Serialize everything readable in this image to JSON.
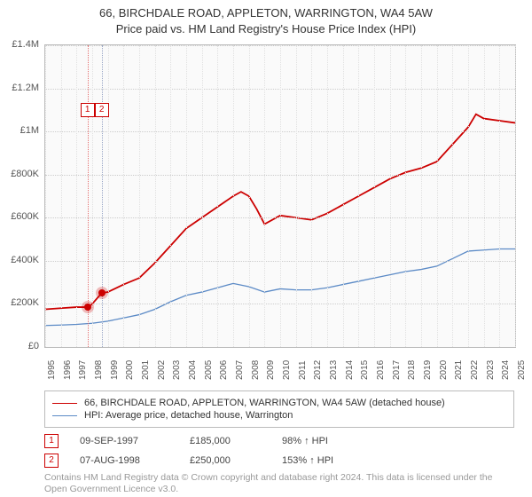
{
  "title": {
    "line1": "66, BIRCHDALE ROAD, APPLETON, WARRINGTON, WA4 5AW",
    "line2": "Price paid vs. HM Land Registry's House Price Index (HPI)"
  },
  "chart": {
    "type": "line",
    "background_color": "#fafafa",
    "border_color": "#bbbbbb",
    "grid_color": "#cccccc",
    "x_years": [
      1995,
      1996,
      1997,
      1998,
      1999,
      2000,
      2001,
      2002,
      2003,
      2004,
      2005,
      2006,
      2007,
      2008,
      2009,
      2010,
      2011,
      2012,
      2013,
      2014,
      2015,
      2016,
      2017,
      2018,
      2019,
      2020,
      2021,
      2022,
      2023,
      2024,
      2025
    ],
    "xlim": [
      1995,
      2025
    ],
    "ylim": [
      0,
      1400000
    ],
    "ytick_step": 200000,
    "y_labels": [
      "£0",
      "£200K",
      "£400K",
      "£600K",
      "£800K",
      "£1M",
      "£1.2M",
      "£1.4M"
    ],
    "series": [
      {
        "name": "property",
        "label": "66, BIRCHDALE ROAD, APPLETON, WARRINGTON, WA4 5AW (detached house)",
        "color": "#cc0000",
        "line_width": 1.8,
        "values": [
          [
            1995,
            175000
          ],
          [
            1996,
            180000
          ],
          [
            1997,
            185000
          ],
          [
            1997.7,
            185000
          ],
          [
            1998,
            200000
          ],
          [
            1998.6,
            250000
          ],
          [
            1999,
            255000
          ],
          [
            2000,
            290000
          ],
          [
            2001,
            320000
          ],
          [
            2002,
            390000
          ],
          [
            2003,
            470000
          ],
          [
            2004,
            550000
          ],
          [
            2005,
            600000
          ],
          [
            2006,
            650000
          ],
          [
            2007,
            700000
          ],
          [
            2007.5,
            720000
          ],
          [
            2008,
            700000
          ],
          [
            2008.5,
            640000
          ],
          [
            2009,
            570000
          ],
          [
            2010,
            610000
          ],
          [
            2011,
            600000
          ],
          [
            2012,
            590000
          ],
          [
            2013,
            620000
          ],
          [
            2014,
            660000
          ],
          [
            2015,
            700000
          ],
          [
            2016,
            740000
          ],
          [
            2017,
            780000
          ],
          [
            2018,
            810000
          ],
          [
            2019,
            830000
          ],
          [
            2020,
            860000
          ],
          [
            2021,
            940000
          ],
          [
            2022,
            1020000
          ],
          [
            2022.5,
            1080000
          ],
          [
            2023,
            1060000
          ],
          [
            2024,
            1050000
          ],
          [
            2025,
            1040000
          ]
        ]
      },
      {
        "name": "hpi",
        "label": "HPI: Average price, detached house, Warrington",
        "color": "#5b8ac6",
        "line_width": 1.3,
        "values": [
          [
            1995,
            100000
          ],
          [
            1996,
            102000
          ],
          [
            1997,
            105000
          ],
          [
            1998,
            110000
          ],
          [
            1999,
            120000
          ],
          [
            2000,
            135000
          ],
          [
            2001,
            150000
          ],
          [
            2002,
            175000
          ],
          [
            2003,
            210000
          ],
          [
            2004,
            240000
          ],
          [
            2005,
            255000
          ],
          [
            2006,
            275000
          ],
          [
            2007,
            295000
          ],
          [
            2008,
            280000
          ],
          [
            2009,
            255000
          ],
          [
            2010,
            270000
          ],
          [
            2011,
            265000
          ],
          [
            2012,
            265000
          ],
          [
            2013,
            275000
          ],
          [
            2014,
            290000
          ],
          [
            2015,
            305000
          ],
          [
            2016,
            320000
          ],
          [
            2017,
            335000
          ],
          [
            2018,
            350000
          ],
          [
            2019,
            360000
          ],
          [
            2020,
            375000
          ],
          [
            2021,
            410000
          ],
          [
            2022,
            445000
          ],
          [
            2023,
            450000
          ],
          [
            2024,
            455000
          ],
          [
            2025,
            455000
          ]
        ]
      }
    ],
    "event_markers": [
      {
        "n": "1",
        "x": 1997.7,
        "y": 185000,
        "vline_color": "#e57373",
        "box_top": 65
      },
      {
        "n": "2",
        "x": 1998.6,
        "y": 250000,
        "vline_color": "#9aa7c7",
        "box_top": 65
      }
    ]
  },
  "events": [
    {
      "n": "1",
      "date": "09-SEP-1997",
      "price": "£185,000",
      "pct": "98% ↑ HPI"
    },
    {
      "n": "2",
      "date": "07-AUG-1998",
      "price": "£250,000",
      "pct": "153% ↑ HPI"
    }
  ],
  "footnote": "Contains HM Land Registry data © Crown copyright and database right 2024. This data is licensed under the Open Government Licence v3.0.",
  "colors": {
    "marker_border": "#cc0000",
    "text": "#333333",
    "muted": "#999999"
  }
}
